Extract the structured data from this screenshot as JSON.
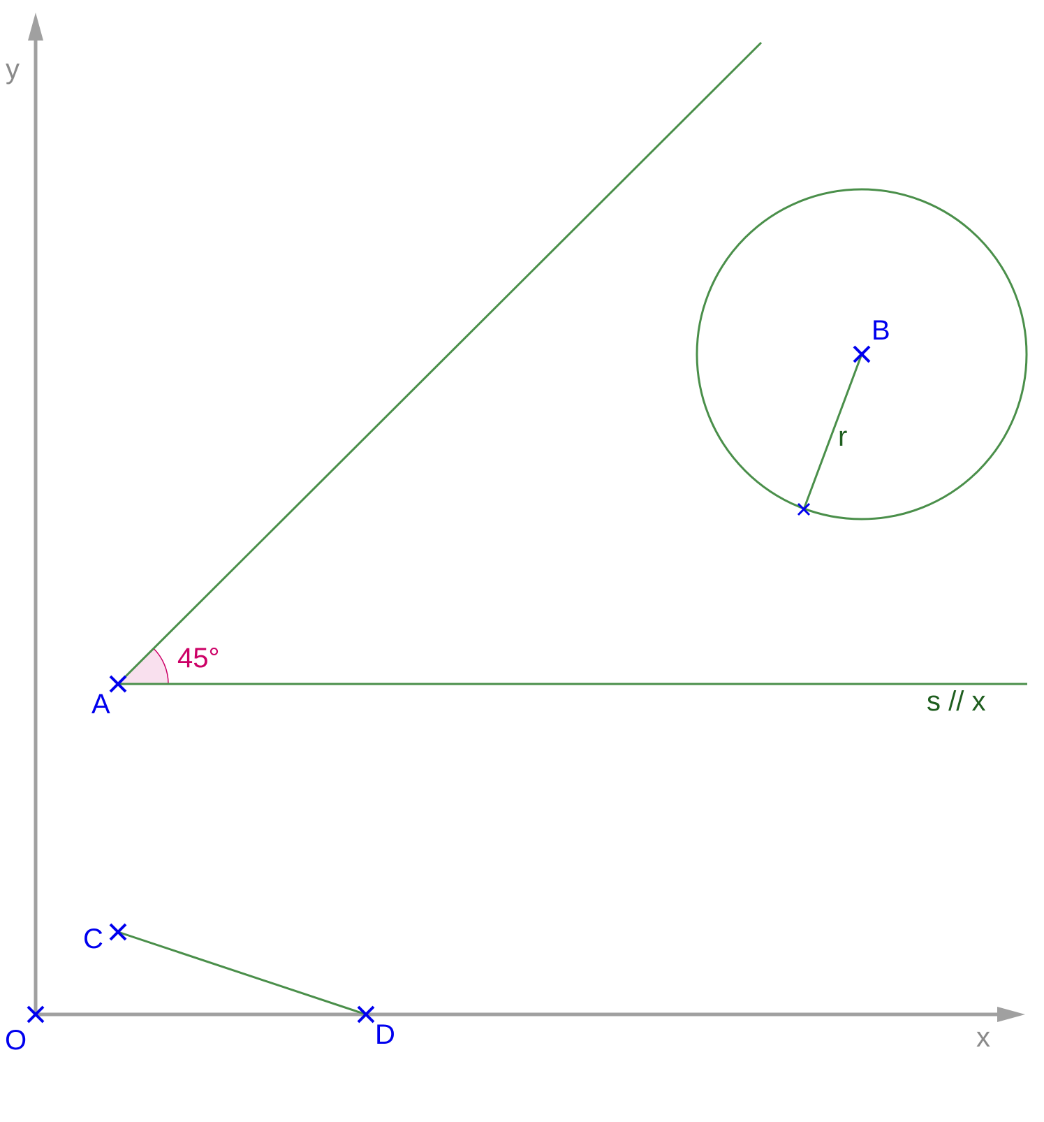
{
  "figure": {
    "axes": {
      "x_label": "x",
      "y_label": "y",
      "axis_color": "#a0a0a0"
    },
    "points": [
      {
        "id": "O",
        "label": "O"
      },
      {
        "id": "A",
        "label": "A"
      },
      {
        "id": "B",
        "label": "B"
      },
      {
        "id": "C",
        "label": "C"
      },
      {
        "id": "D",
        "label": "D"
      }
    ],
    "line_s_label": "s // x",
    "angle_label": "45°",
    "radius_label": "r",
    "colors": {
      "point": "#0000ee",
      "construction": "#4a8f4a",
      "angle": "#cc0066",
      "angle_fill": "#f9e0ee",
      "label_green": "#1f5e1f"
    }
  }
}
